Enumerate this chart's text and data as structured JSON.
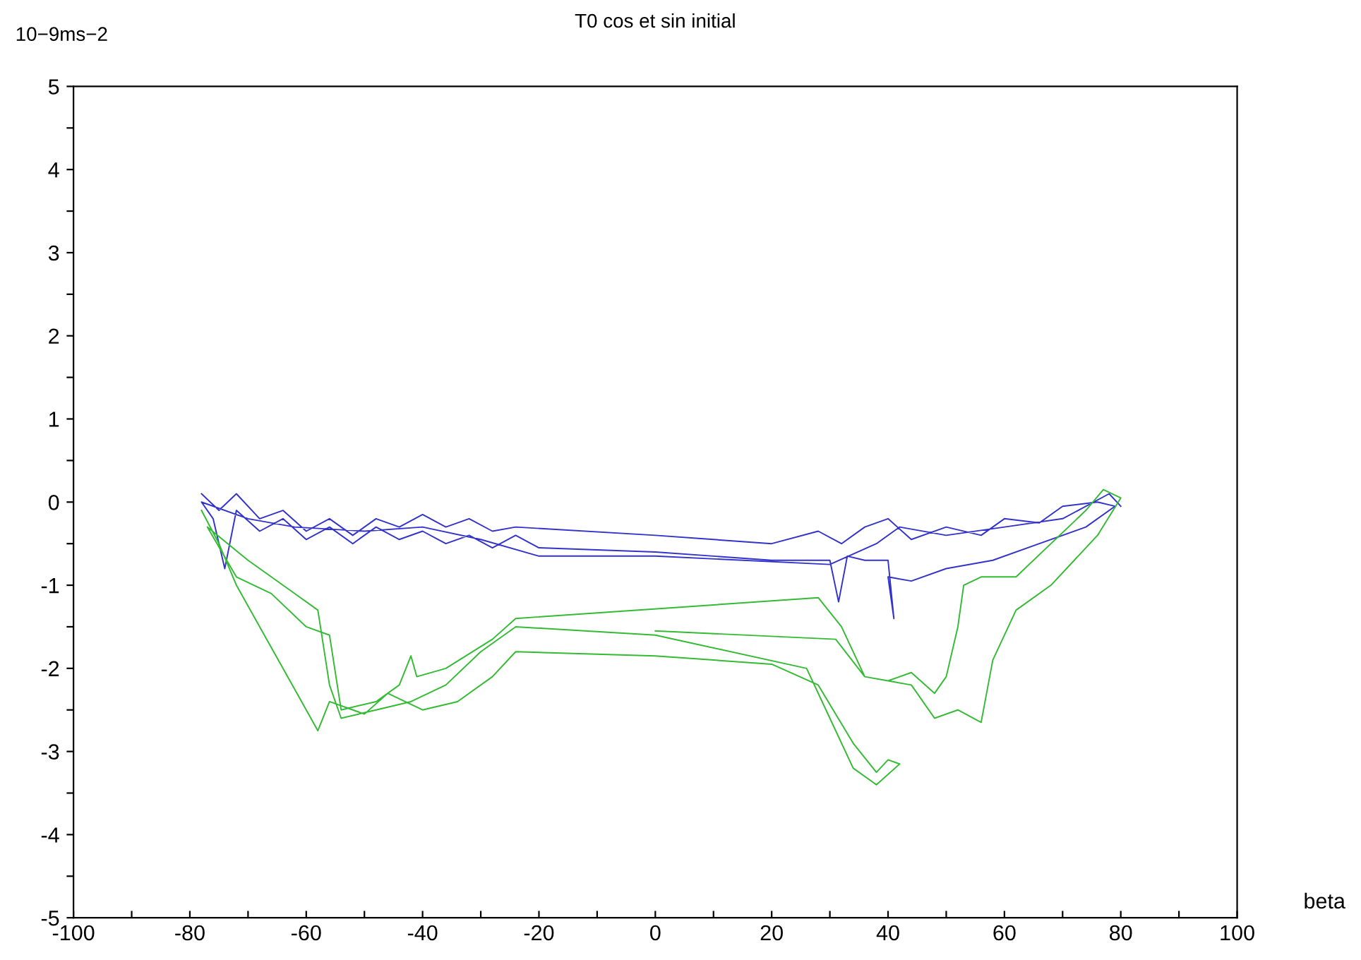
{
  "chart_data": {
    "type": "line",
    "title": "T0 cos et sin initial",
    "xlabel": "beta",
    "ylabel": "10−9ms−2",
    "xlim": [
      -100,
      100
    ],
    "ylim": [
      -5,
      5
    ],
    "xticks": [
      -100,
      {
        "value": -90,
        "label": null
      },
      -80,
      {
        "value": -70,
        "label": null
      },
      -60,
      {
        "value": -50,
        "label": null
      },
      -40,
      {
        "value": -30,
        "label": null
      },
      -20,
      {
        "value": -10,
        "label": null
      },
      0,
      {
        "value": 10,
        "label": null
      },
      20,
      {
        "value": 30,
        "label": null
      },
      40,
      {
        "value": 50,
        "label": null
      },
      60,
      {
        "value": 70,
        "label": null
      },
      80,
      {
        "value": 90,
        "label": null
      },
      100
    ],
    "yticks": [
      -5,
      {
        "value": -4.5,
        "label": null
      },
      -4,
      {
        "value": -3.5,
        "label": null
      },
      -3,
      {
        "value": -2.5,
        "label": null
      },
      -2,
      {
        "value": -1.5,
        "label": null
      },
      -1,
      {
        "value": -0.5,
        "label": null
      },
      0,
      {
        "value": 0.5,
        "label": null
      },
      1,
      {
        "value": 1.5,
        "label": null
      },
      2,
      {
        "value": 2.5,
        "label": null
      },
      3,
      {
        "value": 3.5,
        "label": null
      },
      4,
      {
        "value": 4.5,
        "label": null
      },
      5
    ],
    "grid": false,
    "legend": false,
    "marker": "none",
    "line_style": "solid",
    "series": [
      {
        "color": "#3333cc",
        "x": [
          -78,
          -75,
          -72,
          -68,
          -64,
          -60,
          -56,
          -52,
          -48,
          -44,
          -40,
          -36,
          -32,
          -28,
          -24,
          0,
          20,
          28,
          32,
          36,
          40,
          44,
          50,
          56,
          60,
          66,
          70,
          76,
          79,
          74,
          66,
          58,
          50,
          44,
          40,
          41,
          40,
          36,
          33,
          31.5,
          30,
          20,
          0,
          -20,
          -24,
          -28,
          -32,
          -36,
          -40,
          -44,
          -48,
          -52,
          -56,
          -60,
          -64,
          -68,
          -72,
          -74,
          -76,
          -78,
          -70,
          -62,
          -50,
          -40,
          -30,
          -20,
          0,
          30,
          38,
          42,
          50,
          60,
          70,
          78,
          80
        ],
        "values": [
          0.1,
          -0.1,
          0.1,
          -0.2,
          -0.1,
          -0.35,
          -0.2,
          -0.4,
          -0.2,
          -0.3,
          -0.15,
          -0.3,
          -0.2,
          -0.35,
          -0.3,
          -0.4,
          -0.5,
          -0.35,
          -0.5,
          -0.3,
          -0.2,
          -0.45,
          -0.3,
          -0.4,
          -0.2,
          -0.25,
          -0.05,
          0.0,
          -0.05,
          -0.3,
          -0.5,
          -0.7,
          -0.8,
          -0.95,
          -0.9,
          -1.4,
          -0.7,
          -0.7,
          -0.65,
          -1.2,
          -0.7,
          -0.7,
          -0.6,
          -0.55,
          -0.4,
          -0.55,
          -0.4,
          -0.5,
          -0.35,
          -0.45,
          -0.3,
          -0.5,
          -0.3,
          -0.45,
          -0.2,
          -0.35,
          -0.1,
          -0.8,
          -0.2,
          0.0,
          -0.2,
          -0.3,
          -0.35,
          -0.3,
          -0.45,
          -0.65,
          -0.65,
          -0.75,
          -0.5,
          -0.3,
          -0.4,
          -0.3,
          -0.2,
          0.1,
          -0.05
        ]
      },
      {
        "color": "#33bb33",
        "x": [
          -78,
          -75,
          -72,
          -68,
          -64,
          -58,
          -56,
          -50,
          -46,
          -40,
          -34,
          -28,
          -24,
          0,
          20,
          28,
          34,
          38,
          40,
          42,
          38,
          34,
          30,
          26,
          0,
          -24,
          -30,
          -36,
          -42,
          -48,
          -54,
          -56,
          -58,
          -62,
          -70,
          -77,
          -72,
          -66,
          -60,
          -56,
          -54,
          -48,
          -44,
          -42,
          -41,
          -36,
          -28,
          -24,
          28,
          32,
          36,
          40,
          44,
          48,
          50,
          52,
          53,
          56,
          62,
          68,
          74,
          77,
          80,
          76,
          72,
          68,
          62,
          58,
          56,
          52,
          48,
          44,
          40,
          36,
          31,
          0
        ],
        "values": [
          -0.1,
          -0.5,
          -1.0,
          -1.5,
          -2.0,
          -2.75,
          -2.4,
          -2.55,
          -2.3,
          -2.5,
          -2.4,
          -2.1,
          -1.8,
          -1.85,
          -1.95,
          -2.2,
          -2.9,
          -3.25,
          -3.1,
          -3.15,
          -3.4,
          -3.2,
          -2.6,
          -2.0,
          -1.6,
          -1.5,
          -1.8,
          -2.2,
          -2.4,
          -2.5,
          -2.6,
          -2.2,
          -1.3,
          -1.1,
          -0.7,
          -0.3,
          -0.9,
          -1.1,
          -1.5,
          -1.6,
          -2.5,
          -2.4,
          -2.2,
          -1.85,
          -2.1,
          -2.0,
          -1.65,
          -1.4,
          -1.15,
          -1.5,
          -2.1,
          -2.15,
          -2.05,
          -2.3,
          -2.1,
          -1.5,
          -1.0,
          -0.9,
          -0.9,
          -0.5,
          -0.1,
          0.15,
          0.05,
          -0.4,
          -0.7,
          -1.0,
          -1.3,
          -1.9,
          -2.65,
          -2.5,
          -2.6,
          -2.2,
          -2.15,
          -2.1,
          -1.65,
          -1.55
        ]
      }
    ]
  }
}
